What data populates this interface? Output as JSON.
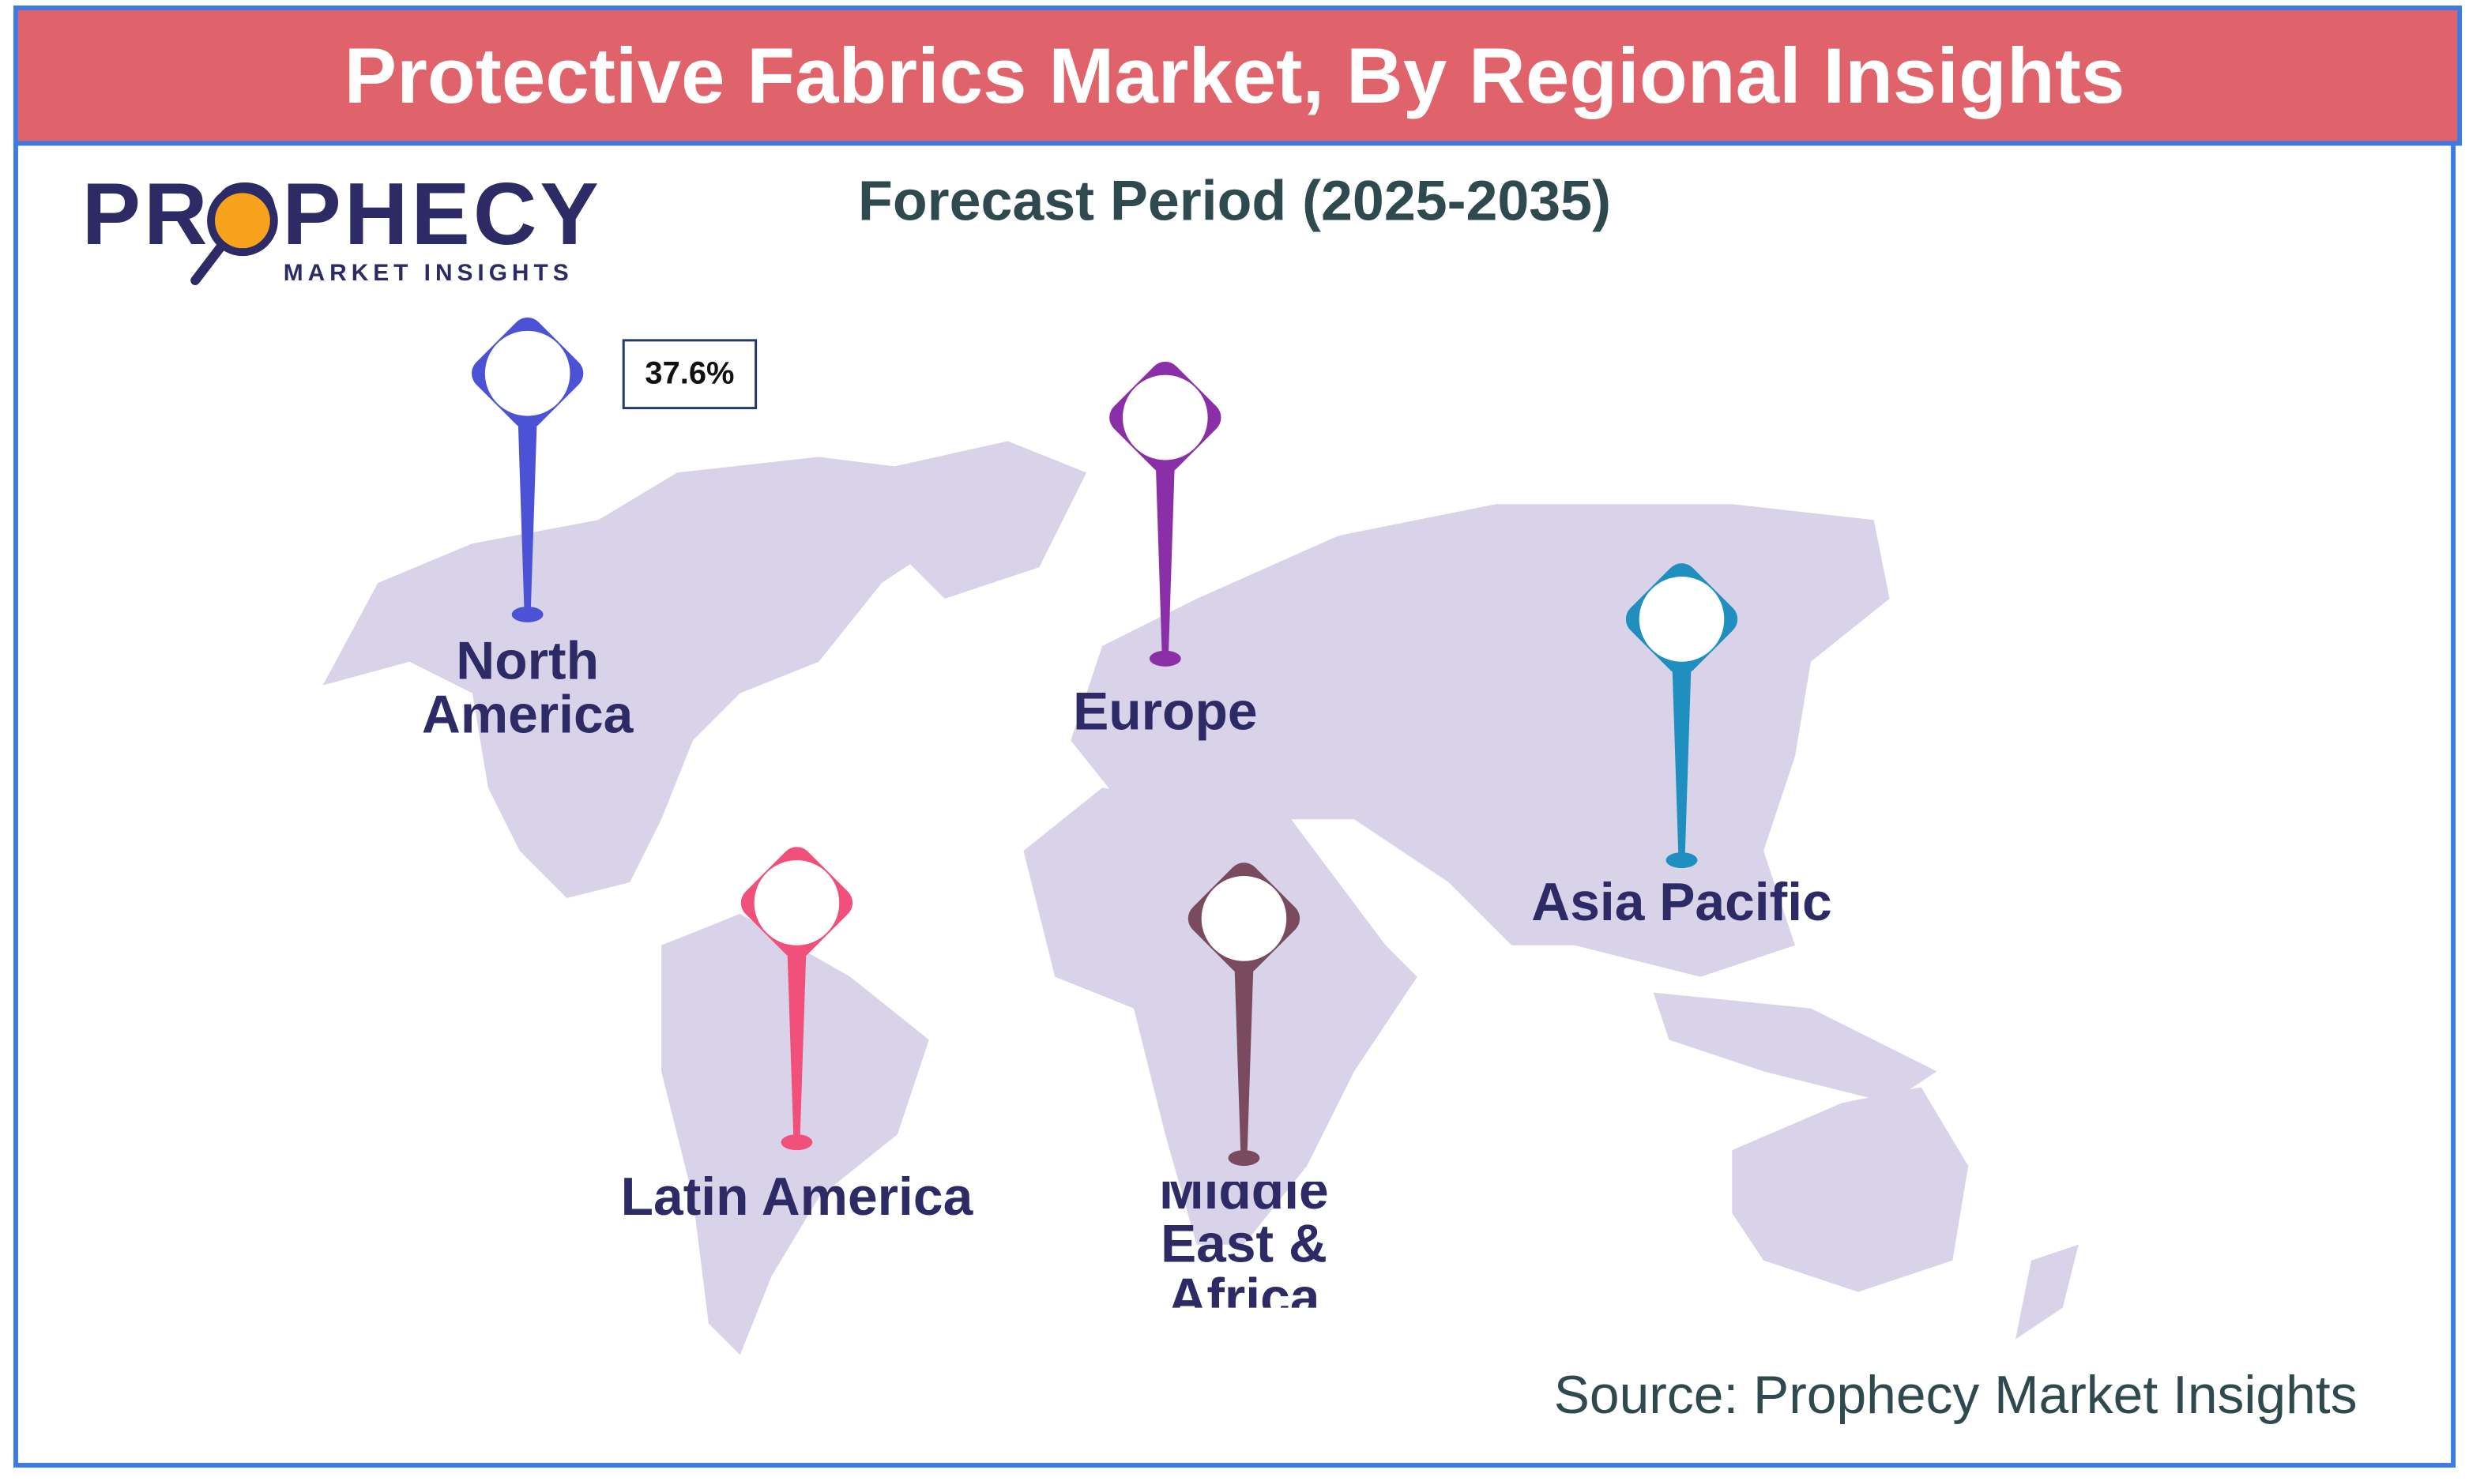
{
  "header": {
    "title": "Protective Fabrics Market, By Regional Insights"
  },
  "subtitle": "Forecast Period (2025-2035)",
  "logo": {
    "name": "PROPHECY",
    "tagline": "MARKET INSIGHTS"
  },
  "regions": [
    {
      "name": "North America",
      "value": 37.6,
      "value_label": "37.6%",
      "color": "#4b52d6"
    },
    {
      "name": "Europe",
      "color": "#8a2fa8"
    },
    {
      "name": "Asia Pacific",
      "color": "#1f8fbf"
    },
    {
      "name": "Latin America",
      "color": "#f0507a"
    },
    {
      "name": "Middle East & Africa",
      "color": "#7a4a5e"
    }
  ],
  "source": "Source: Prophecy Market Insights"
}
